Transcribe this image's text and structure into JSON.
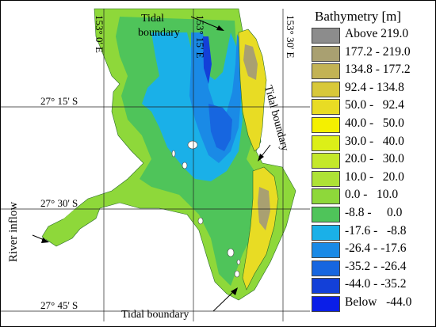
{
  "map": {
    "lon_labels": [
      "153° 0' E",
      "153° 15' E",
      "153° 30' E"
    ],
    "lat_labels": [
      "27° 15' S",
      "27° 30' S",
      "27° 45' S"
    ],
    "annotations": {
      "tidal_north": "Tidal boundary",
      "tidal_east": "Tidal boundary",
      "tidal_south": "Tidal boundary",
      "river": "River inflow"
    }
  },
  "legend": {
    "title": "Bathymetry [m]",
    "items": [
      {
        "label": "Above 219.0",
        "color": "#8c8c8c"
      },
      {
        "label": "177.2 - 219.0",
        "color": "#a9a071"
      },
      {
        "label": "134.8 - 177.2",
        "color": "#c3b354"
      },
      {
        "label": "92.4 - 134.8",
        "color": "#d8c83a"
      },
      {
        "label": "50.0 -   92.4",
        "color": "#e8dc24"
      },
      {
        "label": "40.0 -   50.0",
        "color": "#f4f000"
      },
      {
        "label": "30.0 -   40.0",
        "color": "#dcef18"
      },
      {
        "label": "20.0 -   30.0",
        "color": "#c4e82a"
      },
      {
        "label": "10.0 -   20.0",
        "color": "#aee236"
      },
      {
        "label": "0.0 -   10.0",
        "color": "#8ed83a"
      },
      {
        "label": "-8.8 -     0.0",
        "color": "#4fc45a"
      },
      {
        "label": "-17.6 -   -8.8",
        "color": "#1ab0e8"
      },
      {
        "label": "-26.4 - -17.6",
        "color": "#1a8ae6"
      },
      {
        "label": "-35.2 - -26.4",
        "color": "#1766e0"
      },
      {
        "label": "-44.0 - -35.2",
        "color": "#1340d8"
      },
      {
        "label": "Below   -44.0",
        "color": "#0a1ee8"
      }
    ]
  }
}
